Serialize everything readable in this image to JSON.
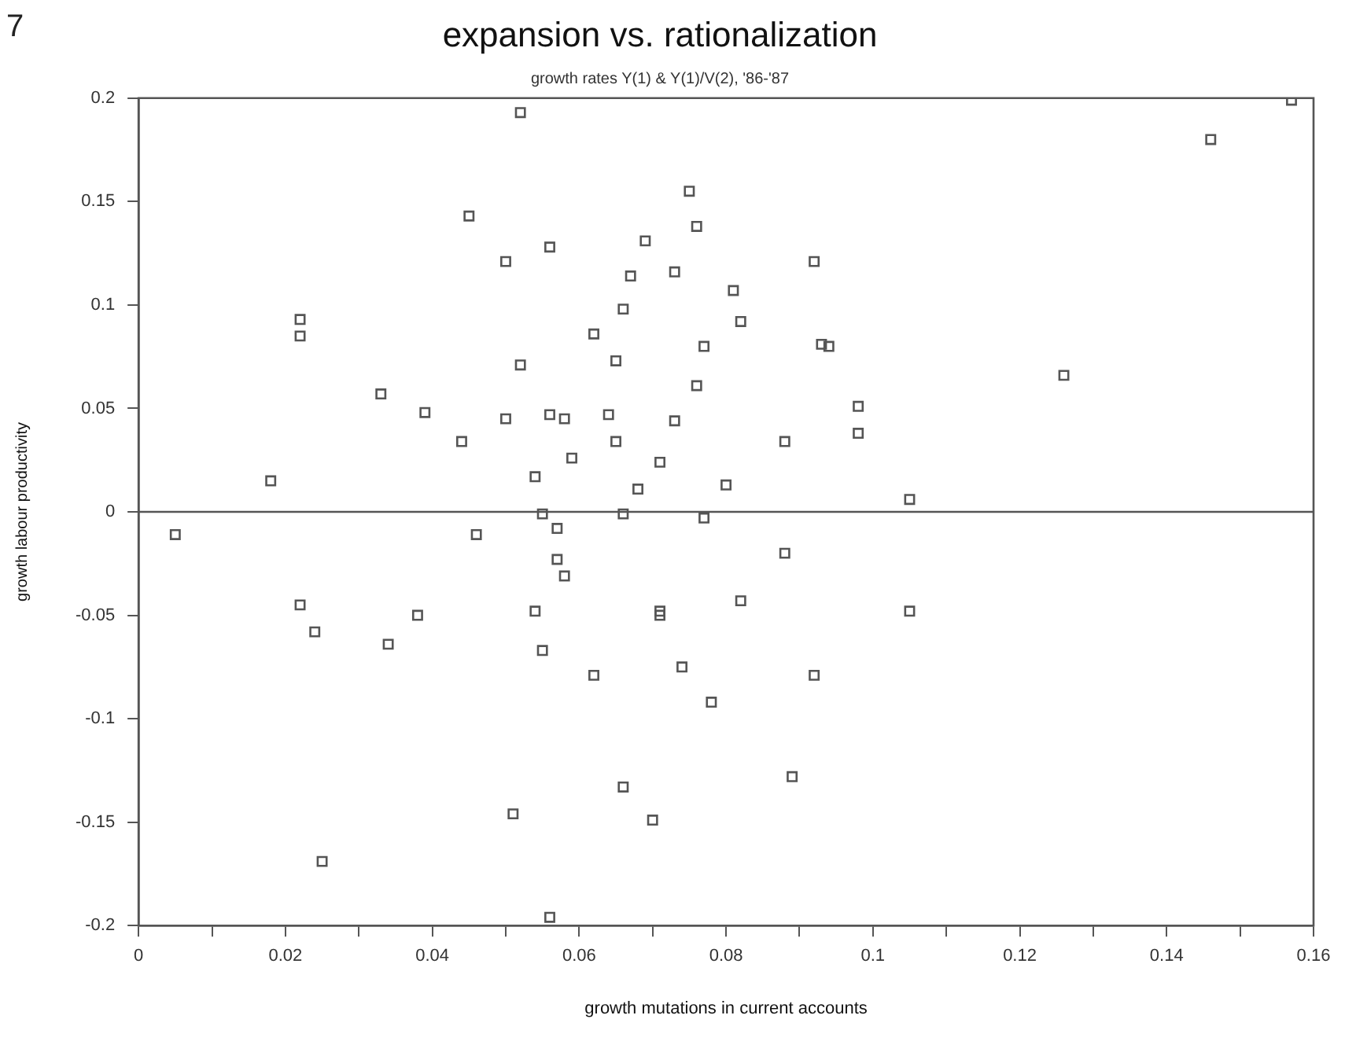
{
  "chart_data": {
    "type": "scatter",
    "title": "expansion vs. rationalization",
    "subtitle": "growth rates Y(1) & Y(1)/V(2), '86-'87",
    "xlabel": "growth mutations in current accounts",
    "ylabel": "growth labour productivity",
    "annotations": [
      "7"
    ],
    "marker": "square",
    "grid": false,
    "legend": false,
    "xlim": [
      0,
      0.16
    ],
    "xticks": [
      0,
      {
        "value": 0.01,
        "label": null
      },
      0.02,
      {
        "value": 0.03,
        "label": null
      },
      0.04,
      {
        "value": 0.05,
        "label": null
      },
      0.06,
      {
        "value": 0.07,
        "label": null
      },
      0.08,
      {
        "value": 0.09,
        "label": null
      },
      0.1,
      {
        "value": 0.11,
        "label": null
      },
      0.12,
      {
        "value": 0.13,
        "label": null
      },
      0.14,
      {
        "value": 0.15,
        "label": null
      },
      0.16
    ],
    "ylim": [
      -0.2,
      0.2
    ],
    "yticks": [
      -0.2,
      -0.15,
      -0.1,
      -0.05,
      0,
      0.05,
      0.1,
      0.15,
      0.2
    ],
    "ref_lines": [
      {
        "axis": "y",
        "value": 0,
        "color": "#555555"
      }
    ],
    "series": [
      {
        "color": "#555555",
        "x": [
          0.052,
          0.075,
          0.076,
          0.045,
          0.056,
          0.05,
          0.069,
          0.067,
          0.073,
          0.066,
          0.022,
          0.022,
          0.062,
          0.065,
          0.052,
          0.077,
          0.076,
          0.033,
          0.039,
          0.05,
          0.056,
          0.058,
          0.064,
          0.073,
          0.044,
          0.065,
          0.059,
          0.071,
          0.018,
          0.054,
          0.068,
          0.08,
          0.055,
          0.066,
          0.157,
          0.146,
          0.092,
          0.081,
          0.082,
          0.093,
          0.094,
          0.126,
          0.098,
          0.098,
          0.088,
          0.105,
          0.077,
          0.005,
          0.046,
          0.057,
          0.057,
          0.058,
          0.022,
          0.024,
          0.038,
          0.034,
          0.054,
          0.071,
          0.071,
          0.055,
          0.062,
          0.074,
          0.078,
          0.066,
          0.051,
          0.07,
          0.025,
          0.056,
          0.088,
          0.082,
          0.105,
          0.092,
          0.089
        ],
        "values": [
          0.193,
          0.155,
          0.138,
          0.143,
          0.128,
          0.121,
          0.131,
          0.114,
          0.116,
          0.098,
          0.093,
          0.085,
          0.086,
          0.073,
          0.071,
          0.08,
          0.061,
          0.057,
          0.048,
          0.045,
          0.047,
          0.045,
          0.047,
          0.044,
          0.034,
          0.034,
          0.026,
          0.024,
          0.015,
          0.017,
          0.011,
          0.013,
          -0.001,
          -0.001,
          0.199,
          0.18,
          0.121,
          0.107,
          0.092,
          0.081,
          0.08,
          0.066,
          0.051,
          0.038,
          0.034,
          0.006,
          -0.003,
          -0.011,
          -0.011,
          -0.008,
          -0.023,
          -0.031,
          -0.045,
          -0.058,
          -0.05,
          -0.064,
          -0.048,
          -0.048,
          -0.05,
          -0.067,
          -0.079,
          -0.075,
          -0.092,
          -0.133,
          -0.146,
          -0.149,
          -0.169,
          -0.196,
          -0.02,
          -0.043,
          -0.048,
          -0.079,
          -0.128
        ]
      }
    ]
  }
}
